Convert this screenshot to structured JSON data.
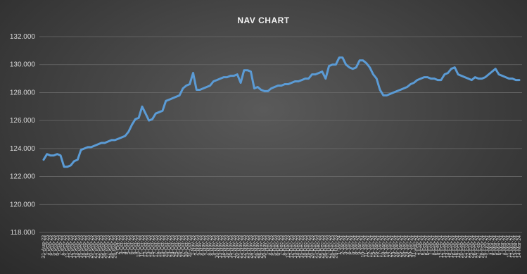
{
  "chart_data": {
    "type": "line",
    "title": "NAV CHART",
    "xlabel": "",
    "ylabel": "",
    "ylim": [
      118,
      132
    ],
    "yticks": [
      "118.000",
      "120.000",
      "122.000",
      "124.000",
      "126.000",
      "128.000",
      "130.000",
      "132.000"
    ],
    "grid": true,
    "legend": "none",
    "series_color": "#5b9bd5",
    "x": [
      "31-Aug-23",
      "1-Sep-23",
      "4-Sep-23",
      "5-Sep-23",
      "6-Sep-23",
      "7-Sep-23",
      "8-Sep-23",
      "11-Sep-23",
      "12-Sep-23",
      "13-Sep-23",
      "14-Sep-23",
      "15-Sep-23",
      "18-Sep-23",
      "19-Sep-23",
      "20-Sep-23",
      "21-Sep-23",
      "22-Sep-23",
      "25-Sep-23",
      "26-Sep-23",
      "27-Sep-23",
      "28-Sep-23",
      "29-Sep-23",
      "2-Oct-23",
      "3-Oct-23",
      "4-Oct-23",
      "5-Oct-23",
      "6-Oct-23",
      "9-Oct-23",
      "10-Oct-23",
      "11-Oct-23",
      "12-Oct-23",
      "13-Oct-23",
      "16-Oct-23",
      "17-Oct-23",
      "18-Oct-23",
      "19-Oct-23",
      "20-Oct-23",
      "23-Oct-23",
      "24-Oct-23",
      "25-Oct-23",
      "26-Oct-23",
      "27-Oct-23",
      "30-Oct-23",
      "31-Oct-23",
      "1-Nov-23",
      "2-Nov-23",
      "3-Nov-23",
      "6-Nov-23",
      "7-Nov-23",
      "8-Nov-23",
      "9-Nov-23",
      "10-Nov-23",
      "13-Nov-23",
      "14-Nov-23",
      "15-Nov-23",
      "16-Nov-23",
      "17-Nov-23",
      "20-Nov-23",
      "21-Nov-23",
      "22-Nov-23",
      "23-Nov-23",
      "24-Nov-23",
      "27-Nov-23",
      "28-Nov-23",
      "29-Nov-23",
      "30-Nov-23",
      "1-Dec-23",
      "4-Dec-23",
      "5-Dec-23",
      "6-Dec-23",
      "7-Dec-23",
      "8-Dec-23",
      "11-Dec-23",
      "12-Dec-23",
      "13-Dec-23",
      "14-Dec-23",
      "15-Dec-23",
      "18-Dec-23",
      "19-Dec-23",
      "20-Dec-23",
      "21-Dec-23",
      "22-Dec-23",
      "25-Dec-23",
      "26-Dec-23",
      "27-Dec-23",
      "28-Dec-23",
      "29-Dec-23",
      "1-Jan-24",
      "2-Jan-24",
      "3-Jan-24",
      "4-Jan-24",
      "5-Jan-24",
      "8-Jan-24",
      "9-Jan-24",
      "10-Jan-24",
      "11-Jan-24",
      "12-Jan-24",
      "15-Jan-24",
      "16-Jan-24",
      "17-Jan-24",
      "18-Jan-24",
      "19-Jan-24",
      "22-Jan-24",
      "23-Jan-24",
      "24-Jan-24",
      "25-Jan-24",
      "26-Jan-24",
      "29-Jan-24",
      "30-Jan-24",
      "31-Jan-24",
      "1-Feb-24",
      "2-Feb-24",
      "5-Feb-24",
      "6-Feb-24",
      "7-Feb-24",
      "8-Feb-24",
      "9-Feb-24",
      "12-Feb-24",
      "13-Feb-24",
      "14-Feb-24",
      "15-Feb-24",
      "16-Feb-24",
      "19-Feb-24",
      "20-Feb-24",
      "21-Feb-24",
      "22-Feb-24",
      "23-Feb-24",
      "26-Feb-24",
      "27-Feb-24",
      "28-Feb-24",
      "29-Feb-24",
      "1-Mar-24",
      "4-Mar-24",
      "5-Mar-24",
      "6-Mar-24",
      "7-Mar-24",
      "8-Mar-24",
      "11-Mar-24",
      "12-Mar-24",
      "13-Mar-24",
      "14-Mar-24"
    ],
    "series": [
      {
        "values": [
          123.2,
          123.6,
          123.5,
          123.5,
          123.6,
          123.5,
          122.7,
          122.7,
          122.8,
          123.1,
          123.2,
          123.9,
          124.0,
          124.1,
          124.1,
          124.2,
          124.3,
          124.4,
          124.4,
          124.5,
          124.6,
          124.6,
          124.7,
          124.8,
          124.9,
          125.2,
          125.7,
          126.1,
          126.2,
          127.0,
          126.5,
          126.0,
          126.1,
          126.5,
          126.6,
          126.7,
          127.4,
          127.5,
          127.6,
          127.7,
          127.8,
          128.3,
          128.5,
          128.6,
          129.4,
          128.2,
          128.2,
          128.3,
          128.4,
          128.5,
          128.8,
          128.9,
          129.0,
          129.1,
          129.1,
          129.2,
          129.2,
          129.3,
          128.7,
          129.6,
          129.6,
          129.5,
          128.3,
          128.4,
          128.2,
          128.1,
          128.1,
          128.3,
          128.4,
          128.5,
          128.5,
          128.6,
          128.6,
          128.7,
          128.8,
          128.8,
          128.9,
          129.0,
          129.0,
          129.3,
          129.3,
          129.4,
          129.5,
          129.0,
          129.9,
          130.0,
          130.0,
          130.5,
          130.5,
          130.0,
          129.8,
          129.7,
          129.8,
          130.3,
          130.3,
          130.1,
          129.8,
          129.3,
          129.0,
          128.2,
          127.8,
          127.8,
          127.9,
          128.0,
          128.1,
          128.2,
          128.3,
          128.4,
          128.6,
          128.7,
          128.9,
          129.0,
          129.1,
          129.1,
          129.0,
          129.0,
          128.9,
          128.9,
          129.3,
          129.4,
          129.7,
          129.8,
          129.3,
          129.2,
          129.1,
          129.0,
          128.9,
          129.1,
          129.0,
          129.0,
          129.1,
          129.3,
          129.5,
          129.7,
          129.3,
          129.2,
          129.1,
          129.0,
          129.0,
          128.9,
          128.9
        ]
      }
    ]
  }
}
